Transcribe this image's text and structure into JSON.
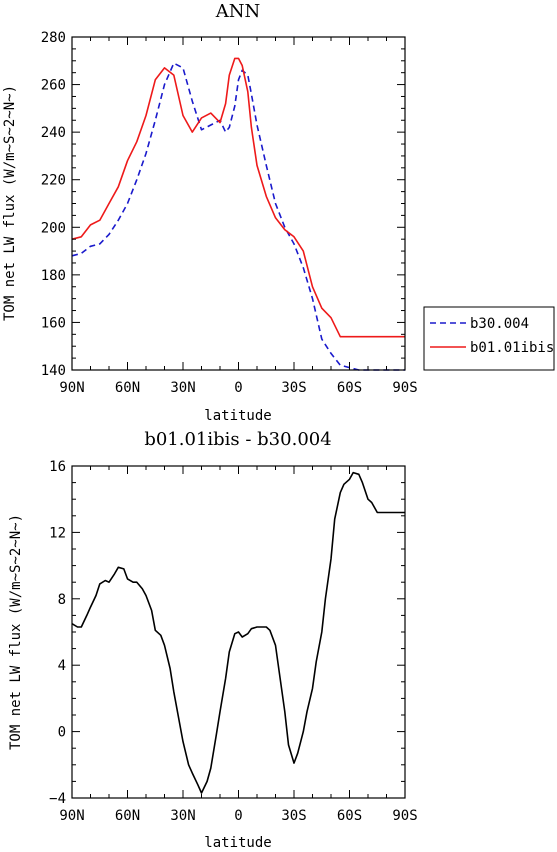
{
  "chart_data": [
    {
      "type": "line",
      "title": "ANN",
      "xlabel": "latitude",
      "ylabel": "TOM net LW flux (W/m~S~2~N~)",
      "x": [
        -90,
        -85,
        -80,
        -75,
        -70,
        -65,
        -60,
        -55,
        -50,
        -45,
        -40,
        -35,
        -30,
        -25,
        -20,
        -15,
        -10,
        -7,
        -5,
        -2,
        0,
        2,
        5,
        7,
        10,
        15,
        20,
        25,
        30,
        35,
        40,
        45,
        50,
        55,
        60,
        65,
        70,
        75,
        80,
        85,
        90
      ],
      "xlim": [
        -90,
        90
      ],
      "ylim": [
        140,
        280
      ],
      "xticks": [
        -90,
        -60,
        -30,
        0,
        30,
        60,
        90
      ],
      "xtick_labels": [
        "90N",
        "60N",
        "30N",
        "0",
        "30S",
        "60S",
        "90S"
      ],
      "yticks": [
        140,
        160,
        180,
        200,
        220,
        240,
        260,
        280
      ],
      "ytick_labels": [
        "140",
        "160",
        "180",
        "200",
        "220",
        "240",
        "260",
        "280"
      ],
      "series": [
        {
          "name": "b30.004",
          "color": "#1a1acc",
          "dash": "dashed",
          "values": [
            188,
            189,
            192,
            193,
            197,
            203,
            210,
            220,
            231,
            245,
            260,
            269,
            267,
            253,
            241,
            243,
            245,
            240,
            242,
            251,
            262,
            266,
            264,
            256,
            243,
            226,
            210,
            200,
            193,
            183,
            170,
            153,
            147,
            142,
            141,
            140,
            140,
            140,
            140,
            140,
            140
          ]
        },
        {
          "name": "b01.01ibis",
          "color": "#ee1a1a",
          "dash": "solid",
          "values": [
            195,
            196,
            201,
            203,
            210,
            217,
            228,
            236,
            247,
            262,
            267,
            264,
            247,
            240,
            246,
            248,
            244,
            252,
            264,
            271,
            271,
            268,
            257,
            242,
            226,
            213,
            204,
            199,
            196,
            190,
            175,
            166,
            162,
            154,
            154,
            154,
            154,
            154,
            154,
            154,
            154
          ]
        }
      ],
      "legend": {
        "placement": "right",
        "entries": [
          "b30.004",
          "b01.01ibis"
        ]
      }
    },
    {
      "type": "line",
      "title": "b01.01ibis - b30.004",
      "xlabel": "latitude",
      "ylabel": "TOM net LW flux (W/m~S~2~N~)",
      "x": [
        -90,
        -87,
        -85,
        -82,
        -80,
        -77,
        -75,
        -72,
        -70,
        -67,
        -65,
        -62,
        -60,
        -57,
        -55,
        -52,
        -50,
        -47,
        -45,
        -42,
        -40,
        -37,
        -35,
        -32,
        -30,
        -27,
        -25,
        -22,
        -20,
        -17,
        -15,
        -12,
        -10,
        -7,
        -5,
        -2,
        0,
        2,
        5,
        7,
        10,
        12,
        15,
        17,
        20,
        22,
        25,
        27,
        30,
        32,
        35,
        37,
        40,
        42,
        45,
        47,
        50,
        52,
        55,
        57,
        60,
        62,
        65,
        67,
        70,
        72,
        75,
        77,
        80,
        82,
        85,
        87,
        90
      ],
      "xlim": [
        -90,
        90
      ],
      "ylim": [
        -4,
        16
      ],
      "xticks": [
        -90,
        -60,
        -30,
        0,
        30,
        60,
        90
      ],
      "xtick_labels": [
        "90N",
        "60N",
        "30N",
        "0",
        "30S",
        "60S",
        "90S"
      ],
      "yticks": [
        -4,
        0,
        4,
        8,
        12,
        16
      ],
      "ytick_labels": [
        "−4",
        "0",
        "4",
        "8",
        "12",
        "16"
      ],
      "series": [
        {
          "color": "#000000",
          "dash": "solid",
          "values": [
            6.5,
            6.3,
            6.3,
            7.0,
            7.5,
            8.2,
            8.9,
            9.1,
            9.0,
            9.5,
            9.9,
            9.8,
            9.2,
            9.0,
            9.0,
            8.6,
            8.2,
            7.3,
            6.1,
            5.8,
            5.2,
            3.8,
            2.4,
            0.6,
            -0.6,
            -2.0,
            -2.5,
            -3.2,
            -3.7,
            -3.0,
            -2.2,
            -0.2,
            1.2,
            3.2,
            4.8,
            5.9,
            6.0,
            5.7,
            5.9,
            6.2,
            6.3,
            6.3,
            6.3,
            6.1,
            5.2,
            3.6,
            1.2,
            -0.8,
            -1.9,
            -1.3,
            0.0,
            1.2,
            2.6,
            4.2,
            6.0,
            8.0,
            10.4,
            12.8,
            14.4,
            14.9,
            15.2,
            15.6,
            15.5,
            15.0,
            14.0,
            13.8,
            13.2,
            13.2,
            13.2,
            13.2,
            13.2,
            13.2,
            13.2
          ]
        }
      ]
    }
  ]
}
